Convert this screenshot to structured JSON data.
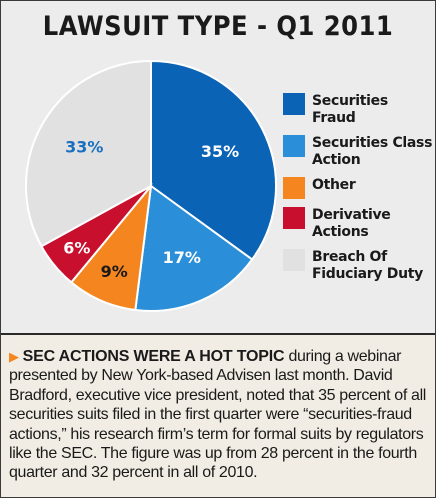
{
  "chart_data": {
    "type": "pie",
    "title": "LAWSUIT TYPE - Q1 2011",
    "unit": "%",
    "slices": [
      {
        "label": "Securities Fraud",
        "value": 35,
        "value_label": "35%",
        "color": "#0b63b5",
        "label_color": "#ffffff"
      },
      {
        "label": "Securities Class Action",
        "value": 17,
        "value_label": "17%",
        "color": "#2a8fd8",
        "label_color": "#ffffff"
      },
      {
        "label": "Other",
        "value": 9,
        "value_label": "9%",
        "color": "#f5861f",
        "label_color": "#1a1a1a"
      },
      {
        "label": "Derivative Actions",
        "value": 6,
        "value_label": "6%",
        "color": "#c8102e",
        "label_color": "#ffffff"
      },
      {
        "label": "Breach Of Fiduciary Duty",
        "value": 33,
        "value_label": "33%",
        "color": "#e1e1e1",
        "label_color": "#1a6fbf"
      }
    ],
    "legend_position": "right"
  },
  "caption": {
    "lead": "SEC ACTIONS WERE A HOT TOPIC",
    "body": " during a webinar presented by New York-based Advisen last month. David Bradford, executive vice president, noted that 35 percent of all securities suits filed in the first quarter were “securities-fraud actions,” his research firm’s term for formal suits by regulators like the SEC. The figure was up from 28 percent in the fourth quarter and 32 percent in all of 2010."
  }
}
